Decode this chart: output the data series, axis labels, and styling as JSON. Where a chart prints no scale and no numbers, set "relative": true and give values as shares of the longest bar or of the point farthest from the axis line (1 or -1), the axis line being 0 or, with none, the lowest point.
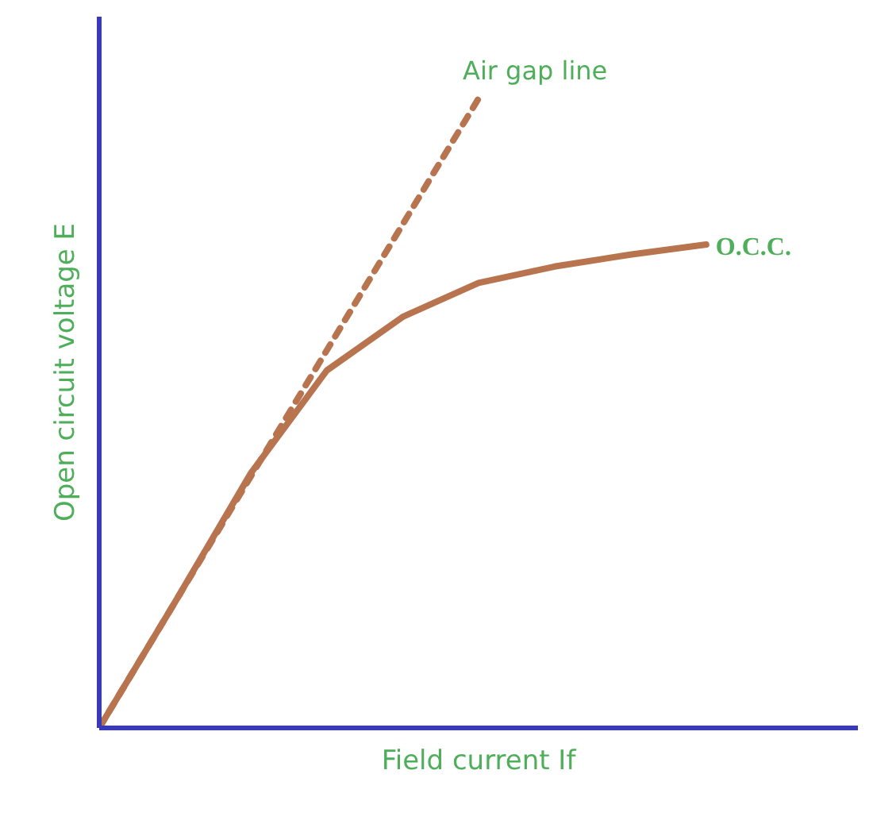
{
  "chart_data": {
    "type": "line",
    "relative": true,
    "xlabel": "Field current If",
    "ylabel": "Open circuit voltage E",
    "grid": false,
    "marker": "none",
    "categories": [
      null,
      null,
      null,
      null,
      null,
      null,
      null,
      null,
      null
    ],
    "series": [
      {
        "name": "Air gap line",
        "color": "#b8744e",
        "line_style": "dashed",
        "values": [
          0,
          0.2,
          0.4,
          0.6,
          0.8,
          1.0,
          null,
          null,
          null
        ]
      },
      {
        "name": "O.C.C.",
        "color": "#b8744e",
        "line_style": "solid",
        "values": [
          0,
          0.2,
          0.405,
          0.568,
          0.653,
          0.707,
          0.733,
          0.752,
          0.768
        ]
      }
    ]
  }
}
